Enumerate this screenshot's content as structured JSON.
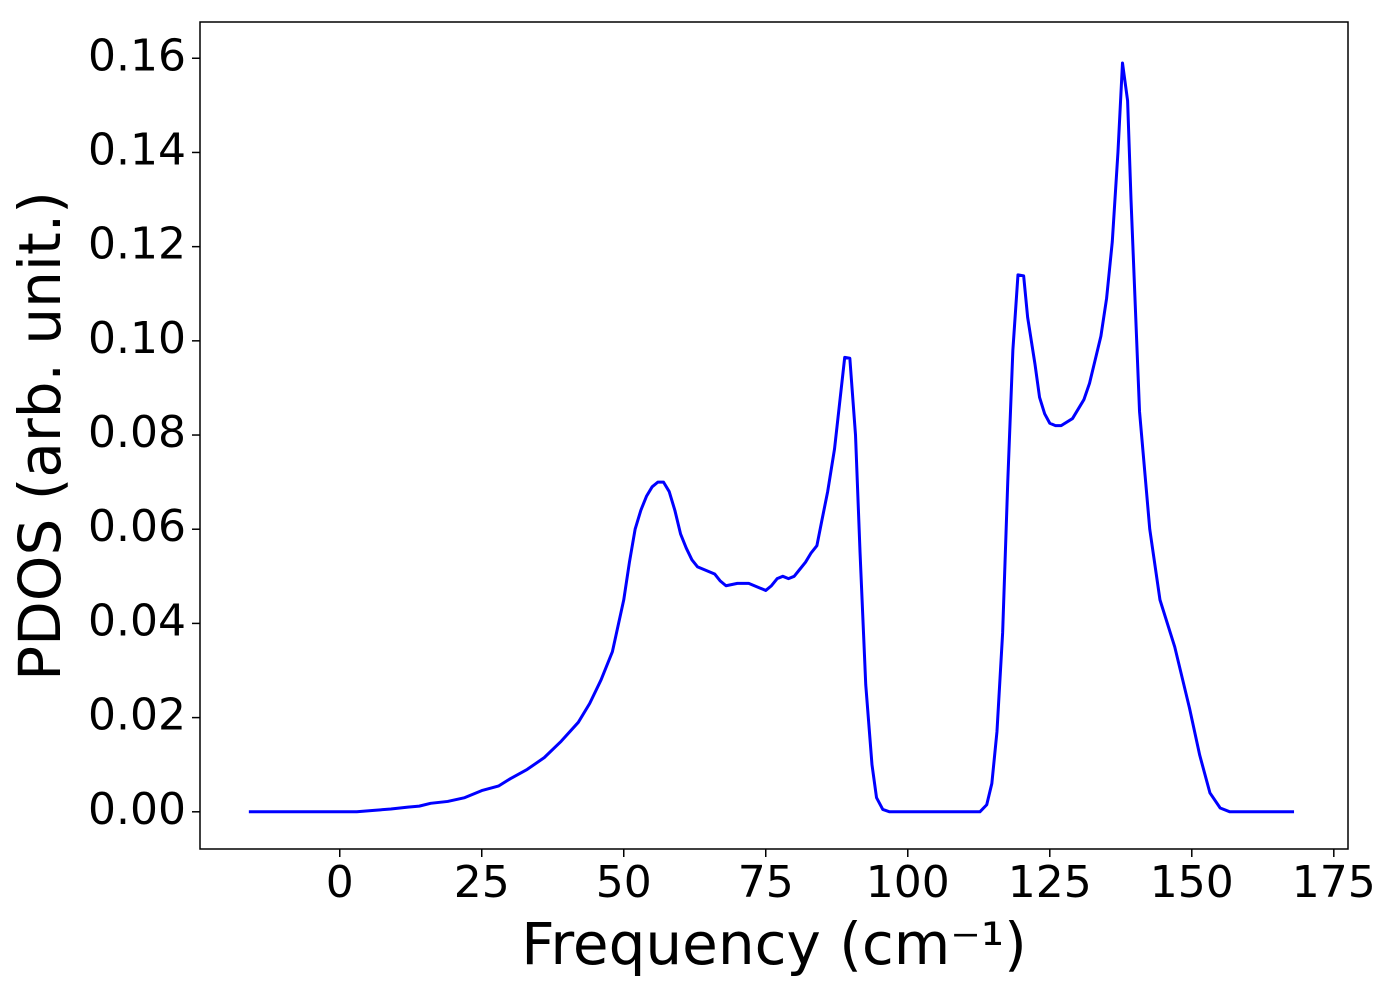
{
  "chart_data": {
    "type": "line",
    "xlabel": "Frequency (cm⁻¹)",
    "ylabel": "PDOS (arb. unit.)",
    "x": [
      -16,
      0,
      3,
      6,
      9,
      12,
      14,
      16,
      19,
      22,
      25,
      28,
      30,
      33,
      36,
      39,
      42,
      44,
      46,
      48,
      50,
      51,
      52,
      53,
      54,
      55,
      56,
      57,
      58,
      59,
      60,
      61,
      62,
      63,
      65,
      66,
      67,
      68,
      70,
      72,
      74,
      75,
      76,
      77,
      78,
      79,
      80,
      81,
      82,
      83,
      84,
      84.9,
      85.9,
      87.1,
      88.9,
      89.8,
      90.8,
      91.6,
      92.6,
      93.7,
      94.5,
      95.6,
      96.8,
      112.7,
      113.9,
      114.8,
      115.7,
      116.7,
      117.6,
      118.5,
      119.4,
      120.4,
      121.1,
      122.4,
      123.2,
      124.1,
      125,
      126,
      127,
      129,
      131,
      132,
      133,
      134,
      135,
      136,
      137,
      137.8,
      138.7,
      139.3,
      140.8,
      142.6,
      144.4,
      147,
      149.6,
      151.4,
      153.2,
      155,
      156.7,
      168
    ],
    "series": [
      {
        "name": "PDOS",
        "color": "#0000ff",
        "values": [
          0,
          0,
          0,
          0.0003,
          0.0006,
          0.001,
          0.0012,
          0.0018,
          0.0022,
          0.003,
          0.0045,
          0.0055,
          0.007,
          0.009,
          0.0115,
          0.015,
          0.019,
          0.023,
          0.028,
          0.034,
          0.045,
          0.053,
          0.06,
          0.064,
          0.067,
          0.069,
          0.07,
          0.07,
          0.068,
          0.064,
          0.059,
          0.056,
          0.0535,
          0.052,
          0.051,
          0.0505,
          0.049,
          0.048,
          0.0485,
          0.0485,
          0.0475,
          0.047,
          0.048,
          0.0495,
          0.05,
          0.0495,
          0.05,
          0.0515,
          0.053,
          0.055,
          0.0565,
          0.062,
          0.068,
          0.077,
          0.0965,
          0.0963,
          0.08,
          0.055,
          0.027,
          0.01,
          0.003,
          0.0005,
          0,
          0,
          0.0015,
          0.006,
          0.017,
          0.038,
          0.07,
          0.098,
          0.114,
          0.1138,
          0.105,
          0.095,
          0.088,
          0.0845,
          0.0825,
          0.082,
          0.082,
          0.0835,
          0.0875,
          0.091,
          0.096,
          0.101,
          0.109,
          0.121,
          0.14,
          0.159,
          0.151,
          0.13,
          0.085,
          0.06,
          0.045,
          0.035,
          0.022,
          0.012,
          0.004,
          0.0008,
          0,
          0
        ]
      }
    ],
    "xlim": [
      -24.6,
      177.5
    ],
    "ylim": [
      -0.0079,
      0.1677
    ],
    "xticks": [
      0,
      25,
      50,
      75,
      100,
      125,
      150,
      175
    ],
    "yticks": [
      {
        "value": 0,
        "label": "0.00"
      },
      0.02,
      0.04,
      0.06,
      0.08,
      {
        "value": 0.1,
        "label": "0.10"
      },
      0.12,
      0.14,
      0.16
    ],
    "grid": false
  }
}
